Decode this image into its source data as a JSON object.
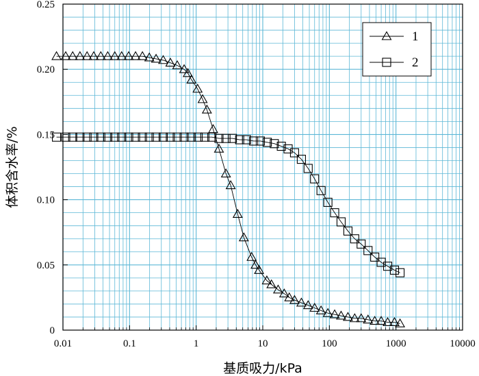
{
  "chart_data": {
    "type": "scatter",
    "xlabel": "基质吸力/kPa",
    "ylabel": "体积含水率/%",
    "xscale": "log",
    "xlim": [
      0.01,
      10000
    ],
    "ylim": [
      0,
      0.25
    ],
    "x_ticks": [
      "0.01",
      "0.1",
      "1",
      "10",
      "100",
      "1000",
      "10000"
    ],
    "y_ticks": [
      "0",
      "0.05",
      "0.10",
      "0.15",
      "0.20",
      "0.25"
    ],
    "grid": true,
    "legend_position": "top-right",
    "colors": {
      "grid": "#5bb7d6",
      "series": "#000000",
      "background": "#ffffff"
    },
    "series": [
      {
        "name": "1",
        "marker": "triangle",
        "points": [
          [
            0.008,
            0.21
          ],
          [
            0.011,
            0.21
          ],
          [
            0.014,
            0.21
          ],
          [
            0.018,
            0.21
          ],
          [
            0.023,
            0.21
          ],
          [
            0.029,
            0.21
          ],
          [
            0.037,
            0.21
          ],
          [
            0.047,
            0.21
          ],
          [
            0.06,
            0.21
          ],
          [
            0.076,
            0.21
          ],
          [
            0.097,
            0.21
          ],
          [
            0.123,
            0.21
          ],
          [
            0.156,
            0.21
          ],
          [
            0.198,
            0.209
          ],
          [
            0.25,
            0.208
          ],
          [
            0.32,
            0.207
          ],
          [
            0.41,
            0.205
          ],
          [
            0.52,
            0.203
          ],
          [
            0.66,
            0.2
          ],
          [
            0.75,
            0.197
          ],
          [
            0.85,
            0.192
          ],
          [
            1.05,
            0.185
          ],
          [
            1.25,
            0.177
          ],
          [
            1.45,
            0.169
          ],
          [
            1.8,
            0.154
          ],
          [
            2.2,
            0.139
          ],
          [
            2.8,
            0.12
          ],
          [
            3.3,
            0.111
          ],
          [
            4.2,
            0.089
          ],
          [
            5.2,
            0.071
          ],
          [
            6.8,
            0.056
          ],
          [
            7.8,
            0.05
          ],
          [
            8.8,
            0.046
          ],
          [
            11.5,
            0.038
          ],
          [
            13.5,
            0.035
          ],
          [
            17,
            0.031
          ],
          [
            21,
            0.028
          ],
          [
            25,
            0.025
          ],
          [
            30,
            0.023
          ],
          [
            38,
            0.021
          ],
          [
            48,
            0.019
          ],
          [
            60,
            0.017
          ],
          [
            75,
            0.015
          ],
          [
            95,
            0.013
          ],
          [
            120,
            0.012
          ],
          [
            150,
            0.011
          ],
          [
            190,
            0.01
          ],
          [
            240,
            0.009
          ],
          [
            300,
            0.009
          ],
          [
            380,
            0.008
          ],
          [
            480,
            0.007
          ],
          [
            600,
            0.007
          ],
          [
            750,
            0.006
          ],
          [
            950,
            0.006
          ],
          [
            1150,
            0.005
          ]
        ]
      },
      {
        "name": "2",
        "marker": "square",
        "points": [
          [
            0.008,
            0.148
          ],
          [
            0.011,
            0.148
          ],
          [
            0.014,
            0.148
          ],
          [
            0.018,
            0.148
          ],
          [
            0.023,
            0.148
          ],
          [
            0.029,
            0.148
          ],
          [
            0.037,
            0.148
          ],
          [
            0.047,
            0.148
          ],
          [
            0.06,
            0.148
          ],
          [
            0.076,
            0.148
          ],
          [
            0.097,
            0.148
          ],
          [
            0.123,
            0.148
          ],
          [
            0.156,
            0.148
          ],
          [
            0.198,
            0.148
          ],
          [
            0.25,
            0.148
          ],
          [
            0.32,
            0.148
          ],
          [
            0.41,
            0.148
          ],
          [
            0.52,
            0.148
          ],
          [
            0.66,
            0.148
          ],
          [
            0.84,
            0.148
          ],
          [
            1.07,
            0.148
          ],
          [
            1.35,
            0.148
          ],
          [
            1.72,
            0.148
          ],
          [
            2.2,
            0.147
          ],
          [
            2.8,
            0.147
          ],
          [
            3.5,
            0.147
          ],
          [
            4.5,
            0.146
          ],
          [
            5.7,
            0.146
          ],
          [
            7.3,
            0.145
          ],
          [
            9.2,
            0.145
          ],
          [
            11.7,
            0.144
          ],
          [
            14.9,
            0.143
          ],
          [
            19,
            0.141
          ],
          [
            24,
            0.139
          ],
          [
            30,
            0.136
          ],
          [
            38,
            0.131
          ],
          [
            48,
            0.124
          ],
          [
            60,
            0.116
          ],
          [
            75,
            0.107
          ],
          [
            95,
            0.098
          ],
          [
            120,
            0.09
          ],
          [
            150,
            0.083
          ],
          [
            190,
            0.076
          ],
          [
            240,
            0.07
          ],
          [
            300,
            0.066
          ],
          [
            380,
            0.061
          ],
          [
            480,
            0.056
          ],
          [
            600,
            0.052
          ],
          [
            750,
            0.049
          ],
          [
            950,
            0.046
          ],
          [
            1150,
            0.044
          ]
        ]
      }
    ]
  }
}
